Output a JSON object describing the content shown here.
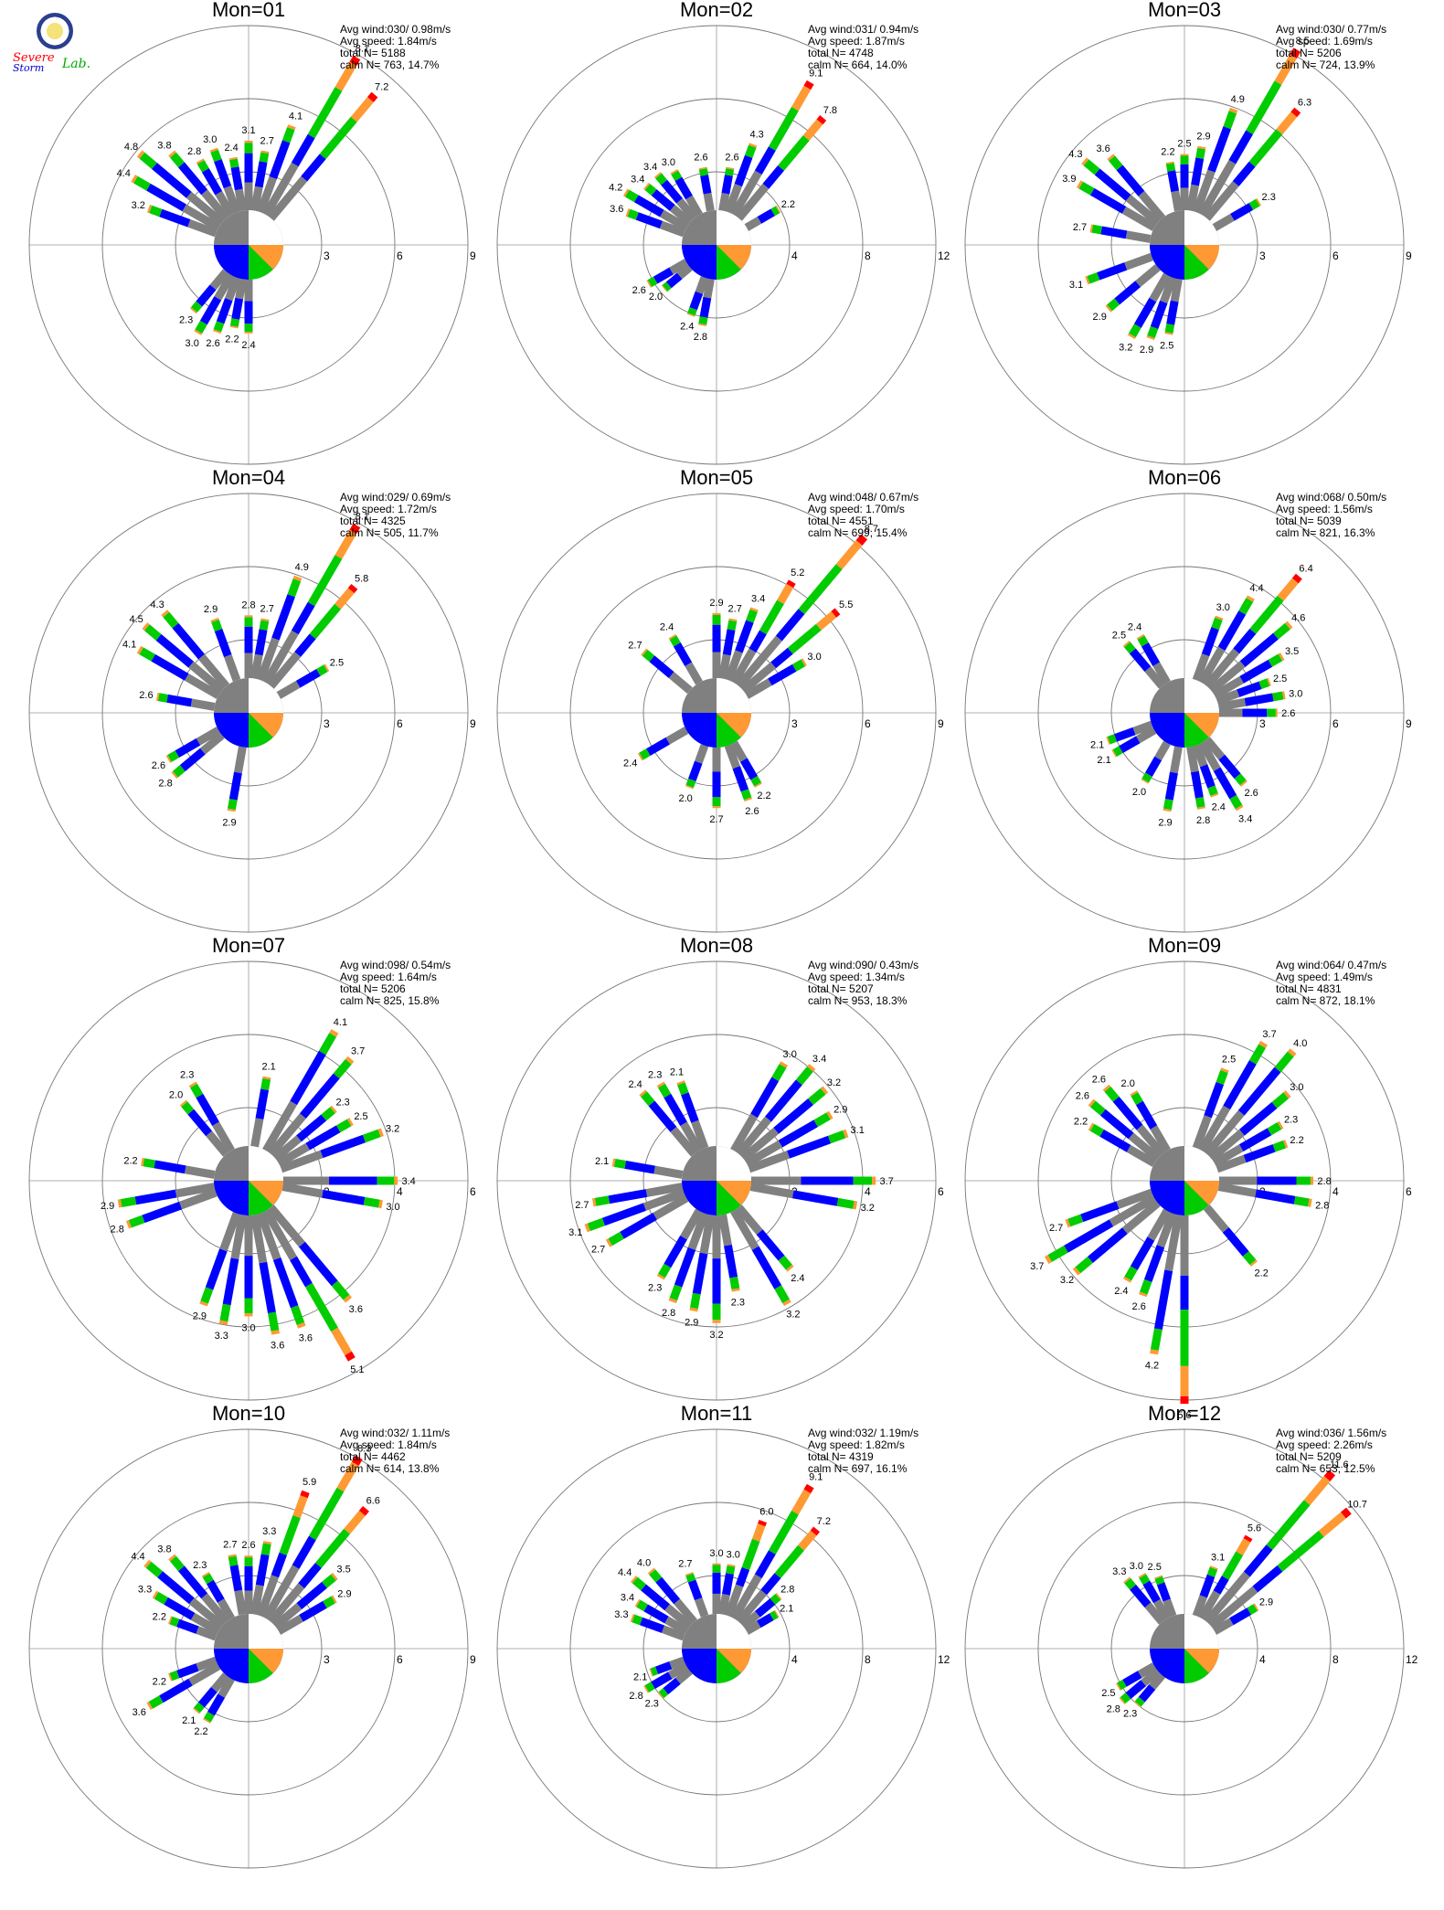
{
  "logo": {
    "name": "Severe Storm Lab.",
    "line1": "Severe",
    "line2": "Storm",
    "line3": "Lab."
  },
  "colors": {
    "blue": "#0000ff",
    "green": "#00cc00",
    "orange": "#ff9933",
    "red": "#ff0000",
    "gray": "#808080"
  },
  "chart_data": [
    {
      "type": "windrose",
      "title": "Mon=01",
      "stats": [
        "Avg wind:030/ 0.98m/s",
        "Avg speed: 1.84m/s",
        "total N=      5188",
        "calm N=    763,  14.7%"
      ],
      "rings": [
        "3",
        "6",
        "9"
      ],
      "rmax": 9,
      "bars": [
        {
          "dir": 30,
          "v": 8.1
        },
        {
          "dir": 40,
          "v": 7.2
        },
        {
          "dir": 20,
          "v": 4.1
        },
        {
          "dir": 10,
          "v": 2.7
        },
        {
          "dir": 0,
          "v": 3.1
        },
        {
          "dir": -10,
          "v": 2.4
        },
        {
          "dir": -20,
          "v": 3.0
        },
        {
          "dir": -30,
          "v": 2.8
        },
        {
          "dir": -40,
          "v": 3.8
        },
        {
          "dir": -50,
          "v": 4.8
        },
        {
          "dir": -60,
          "v": 4.4
        },
        {
          "dir": -70,
          "v": 3.2
        },
        {
          "dir": -140,
          "v": 2.3
        },
        {
          "dir": -150,
          "v": 3.0
        },
        {
          "dir": -160,
          "v": 2.6
        },
        {
          "dir": -170,
          "v": 2.2
        },
        {
          "dir": -180,
          "v": 2.4
        }
      ]
    },
    {
      "type": "windrose",
      "title": "Mon=02",
      "stats": [
        "Avg wind:031/ 0.94m/s",
        "Avg speed: 1.87m/s",
        "total N=      4748",
        "calm N=    664,  14.0%"
      ],
      "rings": [
        "4",
        "8",
        "12"
      ],
      "rmax": 12,
      "bars": [
        {
          "dir": 30,
          "v": 9.1
        },
        {
          "dir": 40,
          "v": 7.8
        },
        {
          "dir": 20,
          "v": 4.3
        },
        {
          "dir": 60,
          "v": 2.2
        },
        {
          "dir": 10,
          "v": 2.6
        },
        {
          "dir": -10,
          "v": 2.6
        },
        {
          "dir": -30,
          "v": 3.0
        },
        {
          "dir": -40,
          "v": 3.4
        },
        {
          "dir": -50,
          "v": 3.4
        },
        {
          "dir": -60,
          "v": 4.2
        },
        {
          "dir": -70,
          "v": 3.6
        },
        {
          "dir": -120,
          "v": 2.6
        },
        {
          "dir": -130,
          "v": 2.0
        },
        {
          "dir": -160,
          "v": 2.4
        },
        {
          "dir": -170,
          "v": 2.8
        }
      ]
    },
    {
      "type": "windrose",
      "title": "Mon=03",
      "stats": [
        "Avg wind:030/ 0.77m/s",
        "Avg speed: 1.69m/s",
        "total N=      5206",
        "calm N=    724,  13.9%"
      ],
      "rings": [
        "3",
        "6",
        "9"
      ],
      "rmax": 9,
      "bars": [
        {
          "dir": 30,
          "v": 8.5
        },
        {
          "dir": 40,
          "v": 6.3
        },
        {
          "dir": 20,
          "v": 4.9
        },
        {
          "dir": 60,
          "v": 2.3
        },
        {
          "dir": 10,
          "v": 2.9
        },
        {
          "dir": 0,
          "v": 2.5
        },
        {
          "dir": -10,
          "v": 2.2
        },
        {
          "dir": -40,
          "v": 3.6
        },
        {
          "dir": -50,
          "v": 4.3
        },
        {
          "dir": -60,
          "v": 3.9
        },
        {
          "dir": -80,
          "v": 2.7
        },
        {
          "dir": -110,
          "v": 3.1
        },
        {
          "dir": -130,
          "v": 2.9
        },
        {
          "dir": -150,
          "v": 3.2
        },
        {
          "dir": -160,
          "v": 2.9
        },
        {
          "dir": -170,
          "v": 2.5
        }
      ]
    },
    {
      "type": "windrose",
      "title": "Mon=04",
      "stats": [
        "Avg wind:029/ 0.69m/s",
        "Avg speed: 1.72m/s",
        "total N=      4325",
        "calm N=    505,  11.7%"
      ],
      "rings": [
        "3",
        "6",
        "9"
      ],
      "rmax": 9,
      "bars": [
        {
          "dir": 30,
          "v": 8.1
        },
        {
          "dir": 40,
          "v": 5.8
        },
        {
          "dir": 20,
          "v": 4.9
        },
        {
          "dir": 60,
          "v": 2.5
        },
        {
          "dir": 10,
          "v": 2.7
        },
        {
          "dir": 0,
          "v": 2.8
        },
        {
          "dir": -20,
          "v": 2.9
        },
        {
          "dir": -40,
          "v": 4.3
        },
        {
          "dir": -50,
          "v": 4.5
        },
        {
          "dir": -60,
          "v": 4.1
        },
        {
          "dir": -80,
          "v": 2.6
        },
        {
          "dir": -120,
          "v": 2.6
        },
        {
          "dir": -130,
          "v": 2.8
        },
        {
          "dir": -170,
          "v": 2.9
        }
      ]
    },
    {
      "type": "windrose",
      "title": "Mon=05",
      "stats": [
        "Avg wind:048/ 0.67m/s",
        "Avg speed: 1.70m/s",
        "total N=      4551",
        "calm N=    699,  15.4%"
      ],
      "rings": [
        "3",
        "6",
        "9"
      ],
      "rmax": 9,
      "bars": [
        {
          "dir": 40,
          "v": 8.7
        },
        {
          "dir": 30,
          "v": 5.2
        },
        {
          "dir": 50,
          "v": 5.5
        },
        {
          "dir": 60,
          "v": 3.0
        },
        {
          "dir": 20,
          "v": 3.4
        },
        {
          "dir": 10,
          "v": 2.7
        },
        {
          "dir": 0,
          "v": 2.9
        },
        {
          "dir": -30,
          "v": 2.4
        },
        {
          "dir": -50,
          "v": 2.7
        },
        {
          "dir": -120,
          "v": 2.4
        },
        {
          "dir": -160,
          "v": 2.0
        },
        {
          "dir": -180,
          "v": 2.7
        },
        {
          "dir": 160,
          "v": 2.6
        },
        {
          "dir": 150,
          "v": 2.2
        }
      ]
    },
    {
      "type": "windrose",
      "title": "Mon=06",
      "stats": [
        "Avg wind:068/ 0.50m/s",
        "Avg speed: 1.56m/s",
        "total N=      5039",
        "calm N=    821,  16.3%"
      ],
      "rings": [
        "3",
        "6",
        "9"
      ],
      "rmax": 9,
      "bars": [
        {
          "dir": 40,
          "v": 6.4
        },
        {
          "dir": 30,
          "v": 4.4
        },
        {
          "dir": 50,
          "v": 4.6
        },
        {
          "dir": 60,
          "v": 3.5
        },
        {
          "dir": 70,
          "v": 2.5
        },
        {
          "dir": 80,
          "v": 3.0
        },
        {
          "dir": 90,
          "v": 2.6
        },
        {
          "dir": 20,
          "v": 3.0
        },
        {
          "dir": -30,
          "v": 2.4
        },
        {
          "dir": -40,
          "v": 2.5
        },
        {
          "dir": -110,
          "v": 2.1
        },
        {
          "dir": -120,
          "v": 2.1
        },
        {
          "dir": -150,
          "v": 2.0
        },
        {
          "dir": -170,
          "v": 2.9
        },
        {
          "dir": 170,
          "v": 2.8
        },
        {
          "dir": 160,
          "v": 2.4
        },
        {
          "dir": 150,
          "v": 3.4
        },
        {
          "dir": 140,
          "v": 2.6
        }
      ]
    },
    {
      "type": "windrose",
      "title": "Mon=07",
      "stats": [
        "Avg wind:098/ 0.54m/s",
        "Avg speed: 1.64m/s",
        "total N=      5206",
        "calm N=    825,  15.8%"
      ],
      "rings": [
        "2",
        "4",
        "6"
      ],
      "rmax": 6,
      "bars": [
        {
          "dir": 30,
          "v": 4.1
        },
        {
          "dir": 40,
          "v": 3.7
        },
        {
          "dir": 10,
          "v": 2.1
        },
        {
          "dir": 50,
          "v": 2.3
        },
        {
          "dir": 60,
          "v": 2.5
        },
        {
          "dir": 70,
          "v": 3.2
        },
        {
          "dir": 90,
          "v": 3.4
        },
        {
          "dir": 100,
          "v": 3.0
        },
        {
          "dir": -30,
          "v": 2.3
        },
        {
          "dir": -40,
          "v": 2.0
        },
        {
          "dir": -80,
          "v": 2.2
        },
        {
          "dir": -100,
          "v": 2.9
        },
        {
          "dir": -110,
          "v": 2.8
        },
        {
          "dir": -160,
          "v": 2.9
        },
        {
          "dir": -170,
          "v": 3.3
        },
        {
          "dir": -180,
          "v": 3.0
        },
        {
          "dir": 170,
          "v": 3.6
        },
        {
          "dir": 160,
          "v": 3.6
        },
        {
          "dir": 150,
          "v": 5.1
        },
        {
          "dir": 140,
          "v": 3.6
        }
      ]
    },
    {
      "type": "windrose",
      "title": "Mon=08",
      "stats": [
        "Avg wind:090/ 0.43m/s",
        "Avg speed: 1.34m/s",
        "total N=      5207",
        "calm N=    953,  18.3%"
      ],
      "rings": [
        "2",
        "4",
        "6"
      ],
      "rmax": 6,
      "bars": [
        {
          "dir": 30,
          "v": 3.0
        },
        {
          "dir": 40,
          "v": 3.4
        },
        {
          "dir": 50,
          "v": 3.2
        },
        {
          "dir": 60,
          "v": 2.9
        },
        {
          "dir": 70,
          "v": 3.1
        },
        {
          "dir": 90,
          "v": 3.7
        },
        {
          "dir": 100,
          "v": 3.2
        },
        {
          "dir": -20,
          "v": 2.1
        },
        {
          "dir": -30,
          "v": 2.3
        },
        {
          "dir": -40,
          "v": 2.4
        },
        {
          "dir": -80,
          "v": 2.1
        },
        {
          "dir": -100,
          "v": 2.7
        },
        {
          "dir": -110,
          "v": 3.1
        },
        {
          "dir": -120,
          "v": 2.7
        },
        {
          "dir": -150,
          "v": 2.3
        },
        {
          "dir": -160,
          "v": 2.8
        },
        {
          "dir": -170,
          "v": 2.9
        },
        {
          "dir": -180,
          "v": 3.2
        },
        {
          "dir": 170,
          "v": 2.3
        },
        {
          "dir": 150,
          "v": 3.2
        },
        {
          "dir": 140,
          "v": 2.4
        }
      ]
    },
    {
      "type": "windrose",
      "title": "Mon=09",
      "stats": [
        "Avg wind:064/ 0.47m/s",
        "Avg speed: 1.49m/s",
        "total N=      4831",
        "calm N=    872,  18.1%"
      ],
      "rings": [
        "2",
        "4",
        "6"
      ],
      "rmax": 6,
      "bars": [
        {
          "dir": 30,
          "v": 3.7
        },
        {
          "dir": 20,
          "v": 2.5
        },
        {
          "dir": 40,
          "v": 4.0
        },
        {
          "dir": 50,
          "v": 3.0
        },
        {
          "dir": 60,
          "v": 2.3
        },
        {
          "dir": 70,
          "v": 2.2
        },
        {
          "dir": 90,
          "v": 2.8
        },
        {
          "dir": 100,
          "v": 2.8
        },
        {
          "dir": -30,
          "v": 2.0
        },
        {
          "dir": -40,
          "v": 2.6
        },
        {
          "dir": -50,
          "v": 2.6
        },
        {
          "dir": -60,
          "v": 2.2
        },
        {
          "dir": -110,
          "v": 2.7
        },
        {
          "dir": -120,
          "v": 3.7
        },
        {
          "dir": -130,
          "v": 3.2
        },
        {
          "dir": -150,
          "v": 2.4
        },
        {
          "dir": -160,
          "v": 2.6
        },
        {
          "dir": -170,
          "v": 4.2
        },
        {
          "dir": -180,
          "v": 5.6
        },
        {
          "dir": 140,
          "v": 2.2
        }
      ]
    },
    {
      "type": "windrose",
      "title": "Mon=10",
      "stats": [
        "Avg wind:032/ 1.11m/s",
        "Avg speed: 1.84m/s",
        "total N=      4462",
        "calm N=    614,  13.8%"
      ],
      "rings": [
        "3",
        "6",
        "9"
      ],
      "rmax": 9,
      "bars": [
        {
          "dir": 30,
          "v": 8.3
        },
        {
          "dir": 40,
          "v": 6.6
        },
        {
          "dir": 20,
          "v": 5.9
        },
        {
          "dir": 10,
          "v": 3.3
        },
        {
          "dir": 50,
          "v": 3.5
        },
        {
          "dir": 60,
          "v": 2.9
        },
        {
          "dir": 0,
          "v": 2.6
        },
        {
          "dir": -10,
          "v": 2.7
        },
        {
          "dir": -30,
          "v": 2.3
        },
        {
          "dir": -40,
          "v": 3.8
        },
        {
          "dir": -50,
          "v": 4.4
        },
        {
          "dir": -60,
          "v": 3.3
        },
        {
          "dir": -70,
          "v": 2.2
        },
        {
          "dir": -110,
          "v": 2.2
        },
        {
          "dir": -120,
          "v": 3.6
        },
        {
          "dir": -140,
          "v": 2.1
        },
        {
          "dir": -150,
          "v": 2.2
        }
      ]
    },
    {
      "type": "windrose",
      "title": "Mon=11",
      "stats": [
        "Avg wind:032/ 1.19m/s",
        "Avg speed: 1.82m/s",
        "total N=      4319",
        "calm N=    697,  16.1%"
      ],
      "rings": [
        "4",
        "8",
        "12"
      ],
      "rmax": 12,
      "bars": [
        {
          "dir": 30,
          "v": 9.1
        },
        {
          "dir": 40,
          "v": 7.2
        },
        {
          "dir": 20,
          "v": 6.0
        },
        {
          "dir": 50,
          "v": 2.8
        },
        {
          "dir": 60,
          "v": 2.1
        },
        {
          "dir": 10,
          "v": 3.0
        },
        {
          "dir": 0,
          "v": 3.0
        },
        {
          "dir": -20,
          "v": 2.7
        },
        {
          "dir": -40,
          "v": 4.0
        },
        {
          "dir": -50,
          "v": 4.4
        },
        {
          "dir": -60,
          "v": 3.4
        },
        {
          "dir": -70,
          "v": 3.3
        },
        {
          "dir": -110,
          "v": 2.1
        },
        {
          "dir": -120,
          "v": 2.8
        },
        {
          "dir": -130,
          "v": 2.3
        }
      ]
    },
    {
      "type": "windrose",
      "title": "Mon=12",
      "stats": [
        "Avg wind:036/ 1.56m/s",
        "Avg speed: 2.26m/s",
        "total N=      5209",
        "calm N=    653,  12.5%"
      ],
      "rings": [
        "4",
        "8",
        "12"
      ],
      "rmax": 12,
      "bars": [
        {
          "dir": 40,
          "v": 11.6
        },
        {
          "dir": 50,
          "v": 10.7
        },
        {
          "dir": 30,
          "v": 5.6
        },
        {
          "dir": 60,
          "v": 2.9
        },
        {
          "dir": 20,
          "v": 3.1
        },
        {
          "dir": -20,
          "v": 2.5
        },
        {
          "dir": -30,
          "v": 3.0
        },
        {
          "dir": -40,
          "v": 3.3
        },
        {
          "dir": -120,
          "v": 2.5
        },
        {
          "dir": -130,
          "v": 2.8
        },
        {
          "dir": -140,
          "v": 2.3
        }
      ]
    }
  ]
}
